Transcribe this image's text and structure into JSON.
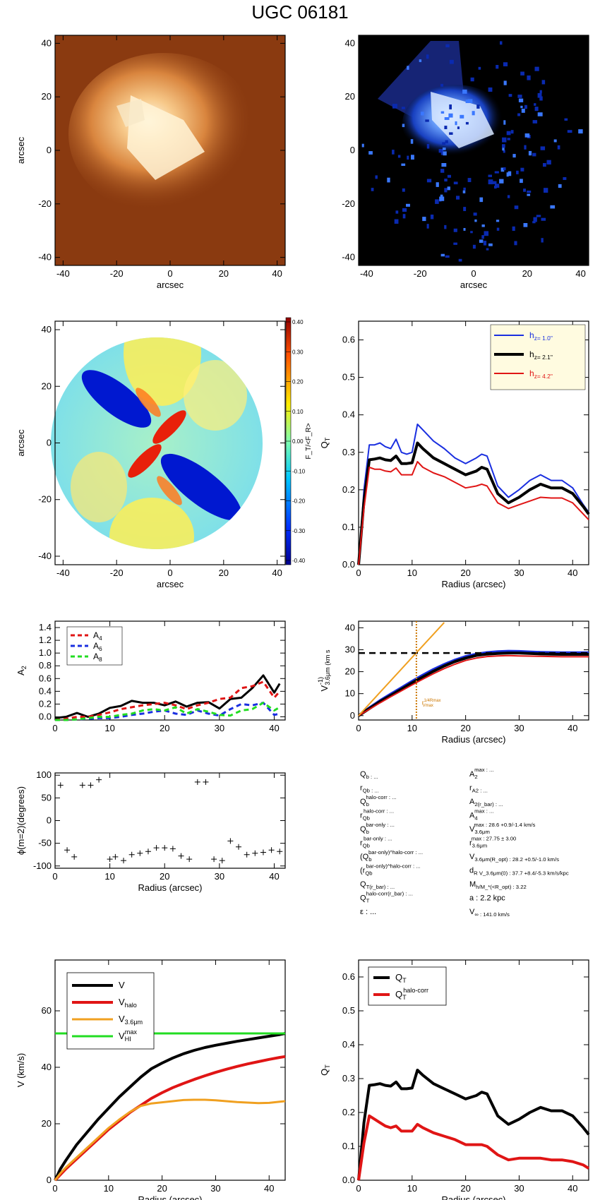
{
  "title": "UGC 06181",
  "colors": {
    "blue": "#1a2fe0",
    "black": "#000000",
    "red": "#e01515",
    "orange": "#f0a020",
    "green": "#22dd22",
    "dark_orange": "#cc7700",
    "legend_bg": "#fffbe0"
  },
  "chart_data": [
    {
      "id": "image-orange",
      "type": "heatmap",
      "xlabel": "arcsec",
      "ylabel": "arcsec",
      "xlim": [
        -43,
        43
      ],
      "ylim": [
        -43,
        43
      ],
      "xticks": [
        -40,
        -20,
        0,
        20,
        40
      ],
      "yticks": [
        -40,
        -20,
        0,
        20,
        40
      ],
      "colormap": "orange-brown",
      "background": "#8a3a10"
    },
    {
      "id": "image-blue",
      "type": "heatmap",
      "xlabel": "arcsec",
      "ylabel": "",
      "xlim": [
        -43,
        43
      ],
      "ylim": [
        -43,
        43
      ],
      "xticks": [
        -40,
        -20,
        0,
        20,
        40
      ],
      "yticks": [
        -40,
        -20,
        0,
        20,
        40
      ],
      "colormap": "blue-black",
      "background": "#000000"
    },
    {
      "id": "ratio-map",
      "type": "heatmap",
      "xlabel": "arcsec",
      "ylabel": "arcsec",
      "xlim": [
        -43,
        43
      ],
      "ylim": [
        -43,
        43
      ],
      "xticks": [
        -40,
        -20,
        0,
        20,
        40
      ],
      "yticks": [
        -40,
        -20,
        0,
        20,
        40
      ],
      "colorbar_label": "F_T/<F_R>",
      "colorbar_ticks": [
        "0.40",
        "0.30",
        "0.20",
        "0.10",
        "0.00",
        "-0.10",
        "-0.20",
        "-0.30",
        "-0.40"
      ]
    },
    {
      "id": "qt-profiles",
      "type": "line",
      "xlabel": "Radius (arcsec)",
      "ylabel": "Q_T",
      "xlim": [
        0,
        43
      ],
      "ylim": [
        0,
        0.65
      ],
      "xticks": [
        0,
        10,
        20,
        30,
        40
      ],
      "yticks": [
        0.0,
        0.1,
        0.2,
        0.3,
        0.4,
        0.5,
        0.6
      ],
      "ytick_labels": [
        "0.0",
        "0.1",
        "0.2",
        "0.3",
        "0.4",
        "0.5",
        "0.6"
      ],
      "x": [
        0,
        1,
        2,
        3,
        4,
        5,
        6,
        7,
        8,
        9,
        10,
        11,
        12,
        14,
        16,
        18,
        20,
        22,
        23,
        24,
        26,
        28,
        30,
        32,
        34,
        36,
        38,
        40,
        42,
        43
      ],
      "series": [
        {
          "name": "h_z=  1.0''",
          "color": "#1a2fe0",
          "width": 2,
          "values": [
            0,
            0.2,
            0.32,
            0.32,
            0.325,
            0.315,
            0.31,
            0.335,
            0.3,
            0.295,
            0.3,
            0.375,
            0.36,
            0.33,
            0.31,
            0.285,
            0.27,
            0.285,
            0.295,
            0.29,
            0.21,
            0.18,
            0.2,
            0.225,
            0.24,
            0.225,
            0.225,
            0.205,
            0.16,
            0.14
          ]
        },
        {
          "name": "h_z=  2.1''",
          "color": "#000000",
          "width": 4,
          "values": [
            0,
            0.17,
            0.28,
            0.282,
            0.285,
            0.28,
            0.278,
            0.29,
            0.27,
            0.27,
            0.272,
            0.325,
            0.31,
            0.285,
            0.27,
            0.255,
            0.24,
            0.25,
            0.26,
            0.255,
            0.19,
            0.165,
            0.18,
            0.2,
            0.215,
            0.205,
            0.205,
            0.19,
            0.155,
            0.135
          ]
        },
        {
          "name": "h_z=  4.2''",
          "color": "#e01515",
          "width": 2,
          "values": [
            0,
            0.15,
            0.26,
            0.255,
            0.255,
            0.25,
            0.248,
            0.258,
            0.24,
            0.24,
            0.24,
            0.275,
            0.26,
            0.245,
            0.235,
            0.22,
            0.205,
            0.21,
            0.215,
            0.21,
            0.165,
            0.15,
            0.16,
            0.17,
            0.18,
            0.178,
            0.178,
            0.165,
            0.135,
            0.12
          ]
        }
      ]
    },
    {
      "id": "fourier-amplitudes",
      "type": "line",
      "xlabel": "",
      "ylabel": "A_2",
      "xlim": [
        0,
        42
      ],
      "ylim": [
        -0.05,
        1.5
      ],
      "xticks": [
        0,
        10,
        20,
        30,
        40
      ],
      "yticks": [
        0.0,
        0.2,
        0.4,
        0.6,
        0.8,
        1.0,
        1.2,
        1.4
      ],
      "ytick_labels": [
        "0.0",
        "0.2",
        "0.4",
        "0.6",
        "0.8",
        "1.0",
        "1.2",
        "1.4"
      ],
      "x": [
        0,
        2,
        4,
        6,
        8,
        10,
        12,
        14,
        16,
        18,
        20,
        22,
        24,
        26,
        28,
        30,
        32,
        34,
        36,
        38,
        40,
        41
      ],
      "series": [
        {
          "name": "A_2",
          "legend": false,
          "color": "#000000",
          "width": 3,
          "values": [
            -0.02,
            0.0,
            0.06,
            0.0,
            0.05,
            0.14,
            0.17,
            0.25,
            0.22,
            0.22,
            0.18,
            0.24,
            0.16,
            0.22,
            0.23,
            0.13,
            0.28,
            0.3,
            0.45,
            0.65,
            0.38,
            0.52
          ]
        },
        {
          "name": "A_4",
          "color": "#e01515",
          "width": 3,
          "dash": true,
          "values": [
            -0.05,
            -0.03,
            0.0,
            0.0,
            0.03,
            0.07,
            0.12,
            0.15,
            0.18,
            0.2,
            0.22,
            0.18,
            0.12,
            0.18,
            0.22,
            0.28,
            0.3,
            0.45,
            0.48,
            0.55,
            0.3,
            0.4
          ]
        },
        {
          "name": "A_6",
          "color": "#1a2fe0",
          "width": 3,
          "dash": true,
          "values": [
            -0.05,
            -0.05,
            -0.04,
            -0.03,
            -0.02,
            -0.02,
            0.0,
            0.03,
            0.05,
            0.08,
            0.1,
            0.05,
            0.03,
            0.1,
            0.05,
            0.02,
            0.12,
            0.2,
            0.18,
            0.22,
            0.03,
            0.05
          ]
        },
        {
          "name": "A_8",
          "color": "#22dd22",
          "width": 3,
          "dash": true,
          "values": [
            -0.05,
            -0.05,
            -0.04,
            -0.02,
            0.0,
            0.0,
            0.03,
            0.05,
            0.1,
            0.12,
            0.1,
            0.15,
            0.05,
            0.12,
            0.08,
            0.03,
            0.02,
            0.1,
            0.12,
            0.22,
            0.1,
            0.15
          ]
        }
      ]
    },
    {
      "id": "velocity-3p6",
      "type": "line",
      "xlabel": "Radius (arcsec)",
      "ylabel": "V_3.6μm (km s^-1)",
      "xlim": [
        0,
        43
      ],
      "ylim": [
        -2,
        43
      ],
      "xticks": [
        0,
        10,
        20,
        30,
        40
      ],
      "yticks": [
        0,
        10,
        20,
        30,
        40
      ],
      "ytick_labels": [
        "0",
        "10",
        "20",
        "30",
        "40"
      ],
      "hline": 28.5,
      "vline": 10.8,
      "vline_label": "r^{1/4Rmax}_{Vmax}",
      "x": [
        0,
        2,
        4,
        6,
        8,
        10,
        12,
        14,
        16,
        18,
        20,
        22,
        24,
        26,
        28,
        30,
        32,
        34,
        36,
        38,
        40,
        43
      ],
      "series": [
        {
          "name": "blue",
          "color": "#1a2fe0",
          "width": 4,
          "values": [
            0,
            3.5,
            6.8,
            9.8,
            12.7,
            15.6,
            18.4,
            21.0,
            23.3,
            25.3,
            26.9,
            28.0,
            28.7,
            29.1,
            29.3,
            29.2,
            29.0,
            28.8,
            28.7,
            28.6,
            28.6,
            28.6
          ]
        },
        {
          "name": "black",
          "color": "#000000",
          "width": 4,
          "values": [
            0,
            3.2,
            6.4,
            9.2,
            12.0,
            14.9,
            17.6,
            20.2,
            22.6,
            24.6,
            26.2,
            27.4,
            28.0,
            28.3,
            28.5,
            28.5,
            28.3,
            28.1,
            28.0,
            27.9,
            27.9,
            27.9
          ]
        },
        {
          "name": "red",
          "color": "#e01515",
          "width": 2,
          "values": [
            0,
            2.9,
            5.8,
            8.6,
            11.3,
            14.0,
            16.6,
            19.1,
            21.4,
            23.4,
            25.1,
            26.2,
            26.9,
            27.2,
            27.3,
            27.2,
            27.1,
            27.0,
            26.9,
            26.8,
            26.8,
            26.8
          ]
        },
        {
          "name": "linear",
          "color": "#f0a020",
          "width": 2,
          "values": [
            0,
            5.3,
            10.6,
            15.9,
            21.2,
            26.5,
            31.8,
            37.1,
            42.4,
            null,
            null,
            null,
            null,
            null,
            null,
            null,
            null,
            null,
            null,
            null,
            null,
            null
          ]
        }
      ]
    },
    {
      "id": "bar-phase",
      "type": "scatter",
      "xlabel": "Radius (arcsec)",
      "ylabel": "ϕ(m=2)(degrees)",
      "xlim": [
        0,
        42
      ],
      "ylim": [
        -105,
        105
      ],
      "xticks": [
        0,
        10,
        20,
        30,
        40
      ],
      "yticks": [
        -100,
        -50,
        0,
        50,
        100
      ],
      "ytick_labels": [
        "-100",
        "-50",
        "0",
        "50",
        "100"
      ],
      "points": [
        [
          1,
          78
        ],
        [
          2.2,
          -65
        ],
        [
          3.5,
          -80
        ],
        [
          5,
          78
        ],
        [
          6.5,
          78
        ],
        [
          8,
          90
        ],
        [
          10,
          -85
        ],
        [
          11,
          -80
        ],
        [
          12.5,
          -88
        ],
        [
          14,
          -75
        ],
        [
          15.5,
          -72
        ],
        [
          17,
          -68
        ],
        [
          18.5,
          -60
        ],
        [
          20,
          -60
        ],
        [
          21.5,
          -62
        ],
        [
          23,
          -78
        ],
        [
          24.5,
          -85
        ],
        [
          26,
          85
        ],
        [
          27.5,
          85
        ],
        [
          29,
          -85
        ],
        [
          30.5,
          -88
        ],
        [
          32,
          -45
        ],
        [
          33.5,
          -58
        ],
        [
          35,
          -75
        ],
        [
          36.5,
          -72
        ],
        [
          38,
          -70
        ],
        [
          39.5,
          -65
        ],
        [
          41,
          -68
        ]
      ]
    },
    {
      "id": "rotation-curve",
      "type": "line",
      "xlabel": "Radius (arcsec)",
      "ylabel": "V (km/s)",
      "xlim": [
        0,
        43
      ],
      "ylim": [
        0,
        78
      ],
      "xticks": [
        0,
        10,
        20,
        30,
        40
      ],
      "yticks": [
        0,
        20,
        40,
        60
      ],
      "ytick_labels": [
        "0",
        "20",
        "40",
        "60"
      ],
      "x": [
        0,
        1,
        2,
        4,
        6,
        8,
        10,
        12,
        14,
        16,
        18,
        20,
        22,
        24,
        26,
        28,
        30,
        32,
        34,
        36,
        38,
        40,
        42,
        43
      ],
      "series": [
        {
          "name": "V",
          "color": "#000000",
          "width": 4,
          "values": [
            0,
            4,
            7,
            12.5,
            17,
            21.5,
            25.5,
            29.5,
            33,
            36.5,
            39.5,
            41.5,
            43.3,
            44.8,
            46,
            47,
            47.8,
            48.5,
            49.2,
            49.8,
            50.4,
            51,
            51.6,
            52
          ]
        },
        {
          "name": "V_halo",
          "color": "#e01515",
          "width": 4,
          "values": [
            0,
            2,
            4,
            7.5,
            11,
            14.5,
            18,
            21,
            24,
            26.5,
            29,
            31,
            32.8,
            34.3,
            35.7,
            37,
            38.2,
            39.3,
            40.3,
            41.2,
            42,
            42.8,
            43.5,
            43.8
          ]
        },
        {
          "name": "V_3.6μm",
          "color": "#f0a020",
          "width": 3,
          "values": [
            0,
            2.5,
            4.5,
            8,
            11.5,
            15,
            18.5,
            21.5,
            24.2,
            26.3,
            27.2,
            27.6,
            28.0,
            28.4,
            28.5,
            28.5,
            28.3,
            28.0,
            27.7,
            27.5,
            27.3,
            27.4,
            27.8,
            28
          ]
        },
        {
          "name": "V_HI^max",
          "color": "#22dd22",
          "width": 3,
          "values": [
            52,
            52,
            52,
            52,
            52,
            52,
            52,
            52,
            52,
            52,
            52,
            52,
            52,
            52,
            52,
            52,
            52,
            52,
            52,
            52,
            52,
            52,
            52,
            52
          ]
        }
      ]
    },
    {
      "id": "qt-corrected",
      "type": "line",
      "xlabel": "Radius (arcsec)",
      "ylabel": "Q_T",
      "xlim": [
        0,
        43
      ],
      "ylim": [
        0,
        0.65
      ],
      "xticks": [
        0,
        10,
        20,
        30,
        40
      ],
      "yticks": [
        0.0,
        0.1,
        0.2,
        0.3,
        0.4,
        0.5,
        0.6
      ],
      "ytick_labels": [
        "0.0",
        "0.1",
        "0.2",
        "0.3",
        "0.4",
        "0.5",
        "0.6"
      ],
      "x": [
        0,
        1,
        2,
        3,
        4,
        5,
        6,
        7,
        8,
        9,
        10,
        11,
        12,
        14,
        16,
        18,
        20,
        22,
        23,
        24,
        26,
        28,
        30,
        32,
        34,
        36,
        38,
        40,
        42,
        43
      ],
      "series": [
        {
          "name": "Q_T",
          "color": "#000000",
          "width": 4,
          "values": [
            0,
            0.17,
            0.28,
            0.282,
            0.285,
            0.28,
            0.278,
            0.29,
            0.27,
            0.27,
            0.272,
            0.325,
            0.31,
            0.285,
            0.27,
            0.255,
            0.24,
            0.25,
            0.26,
            0.255,
            0.19,
            0.165,
            0.18,
            0.2,
            0.215,
            0.205,
            0.205,
            0.19,
            0.155,
            0.135
          ]
        },
        {
          "name": "Q_T^halo-corr",
          "color": "#e01515",
          "width": 4,
          "values": [
            0,
            0.11,
            0.19,
            0.18,
            0.17,
            0.16,
            0.155,
            0.16,
            0.145,
            0.145,
            0.145,
            0.165,
            0.155,
            0.14,
            0.13,
            0.12,
            0.105,
            0.105,
            0.105,
            0.1,
            0.075,
            0.06,
            0.065,
            0.065,
            0.065,
            0.06,
            0.06,
            0.055,
            0.045,
            0.035
          ]
        }
      ]
    }
  ],
  "info_panel": {
    "left": [
      "Q_b : ...",
      "r_Qb : ...",
      "Q_b^halo-corr : ...",
      "r_Qb^halo-corr : ...",
      "Q_b^bar-only : ...",
      "r_Qb^bar-only : ...",
      "(Q_b^bar-only)^halo-corr : ...",
      "(r_Qb^bar-only)^halo-corr : ...",
      "Q_T(r_bar) : ...",
      "Q_T^halo-corr(r_bar) : ...",
      "ε : ..."
    ],
    "right": [
      "A_2^max : ...",
      "r_A2 : ...",
      "A_2(r_bar) : ...",
      "A_4^max : ...",
      "V_3.6μm^max :  28.6 +0.9/-1.4 km/s",
      "r_3.6μm^max :  27.75 ± 3.00",
      "V_3.6μm(R_opt) :  28.2 +0.5/-1.0 km/s",
      "d_R V_3.6μm(0) :  37.7 +8.4/-5.3 km/s/kpc",
      "M_h/M_*(<R_opt) :  3.22",
      "a :   2.2 kpc",
      "V_∞ :  141.0 km/s"
    ]
  }
}
